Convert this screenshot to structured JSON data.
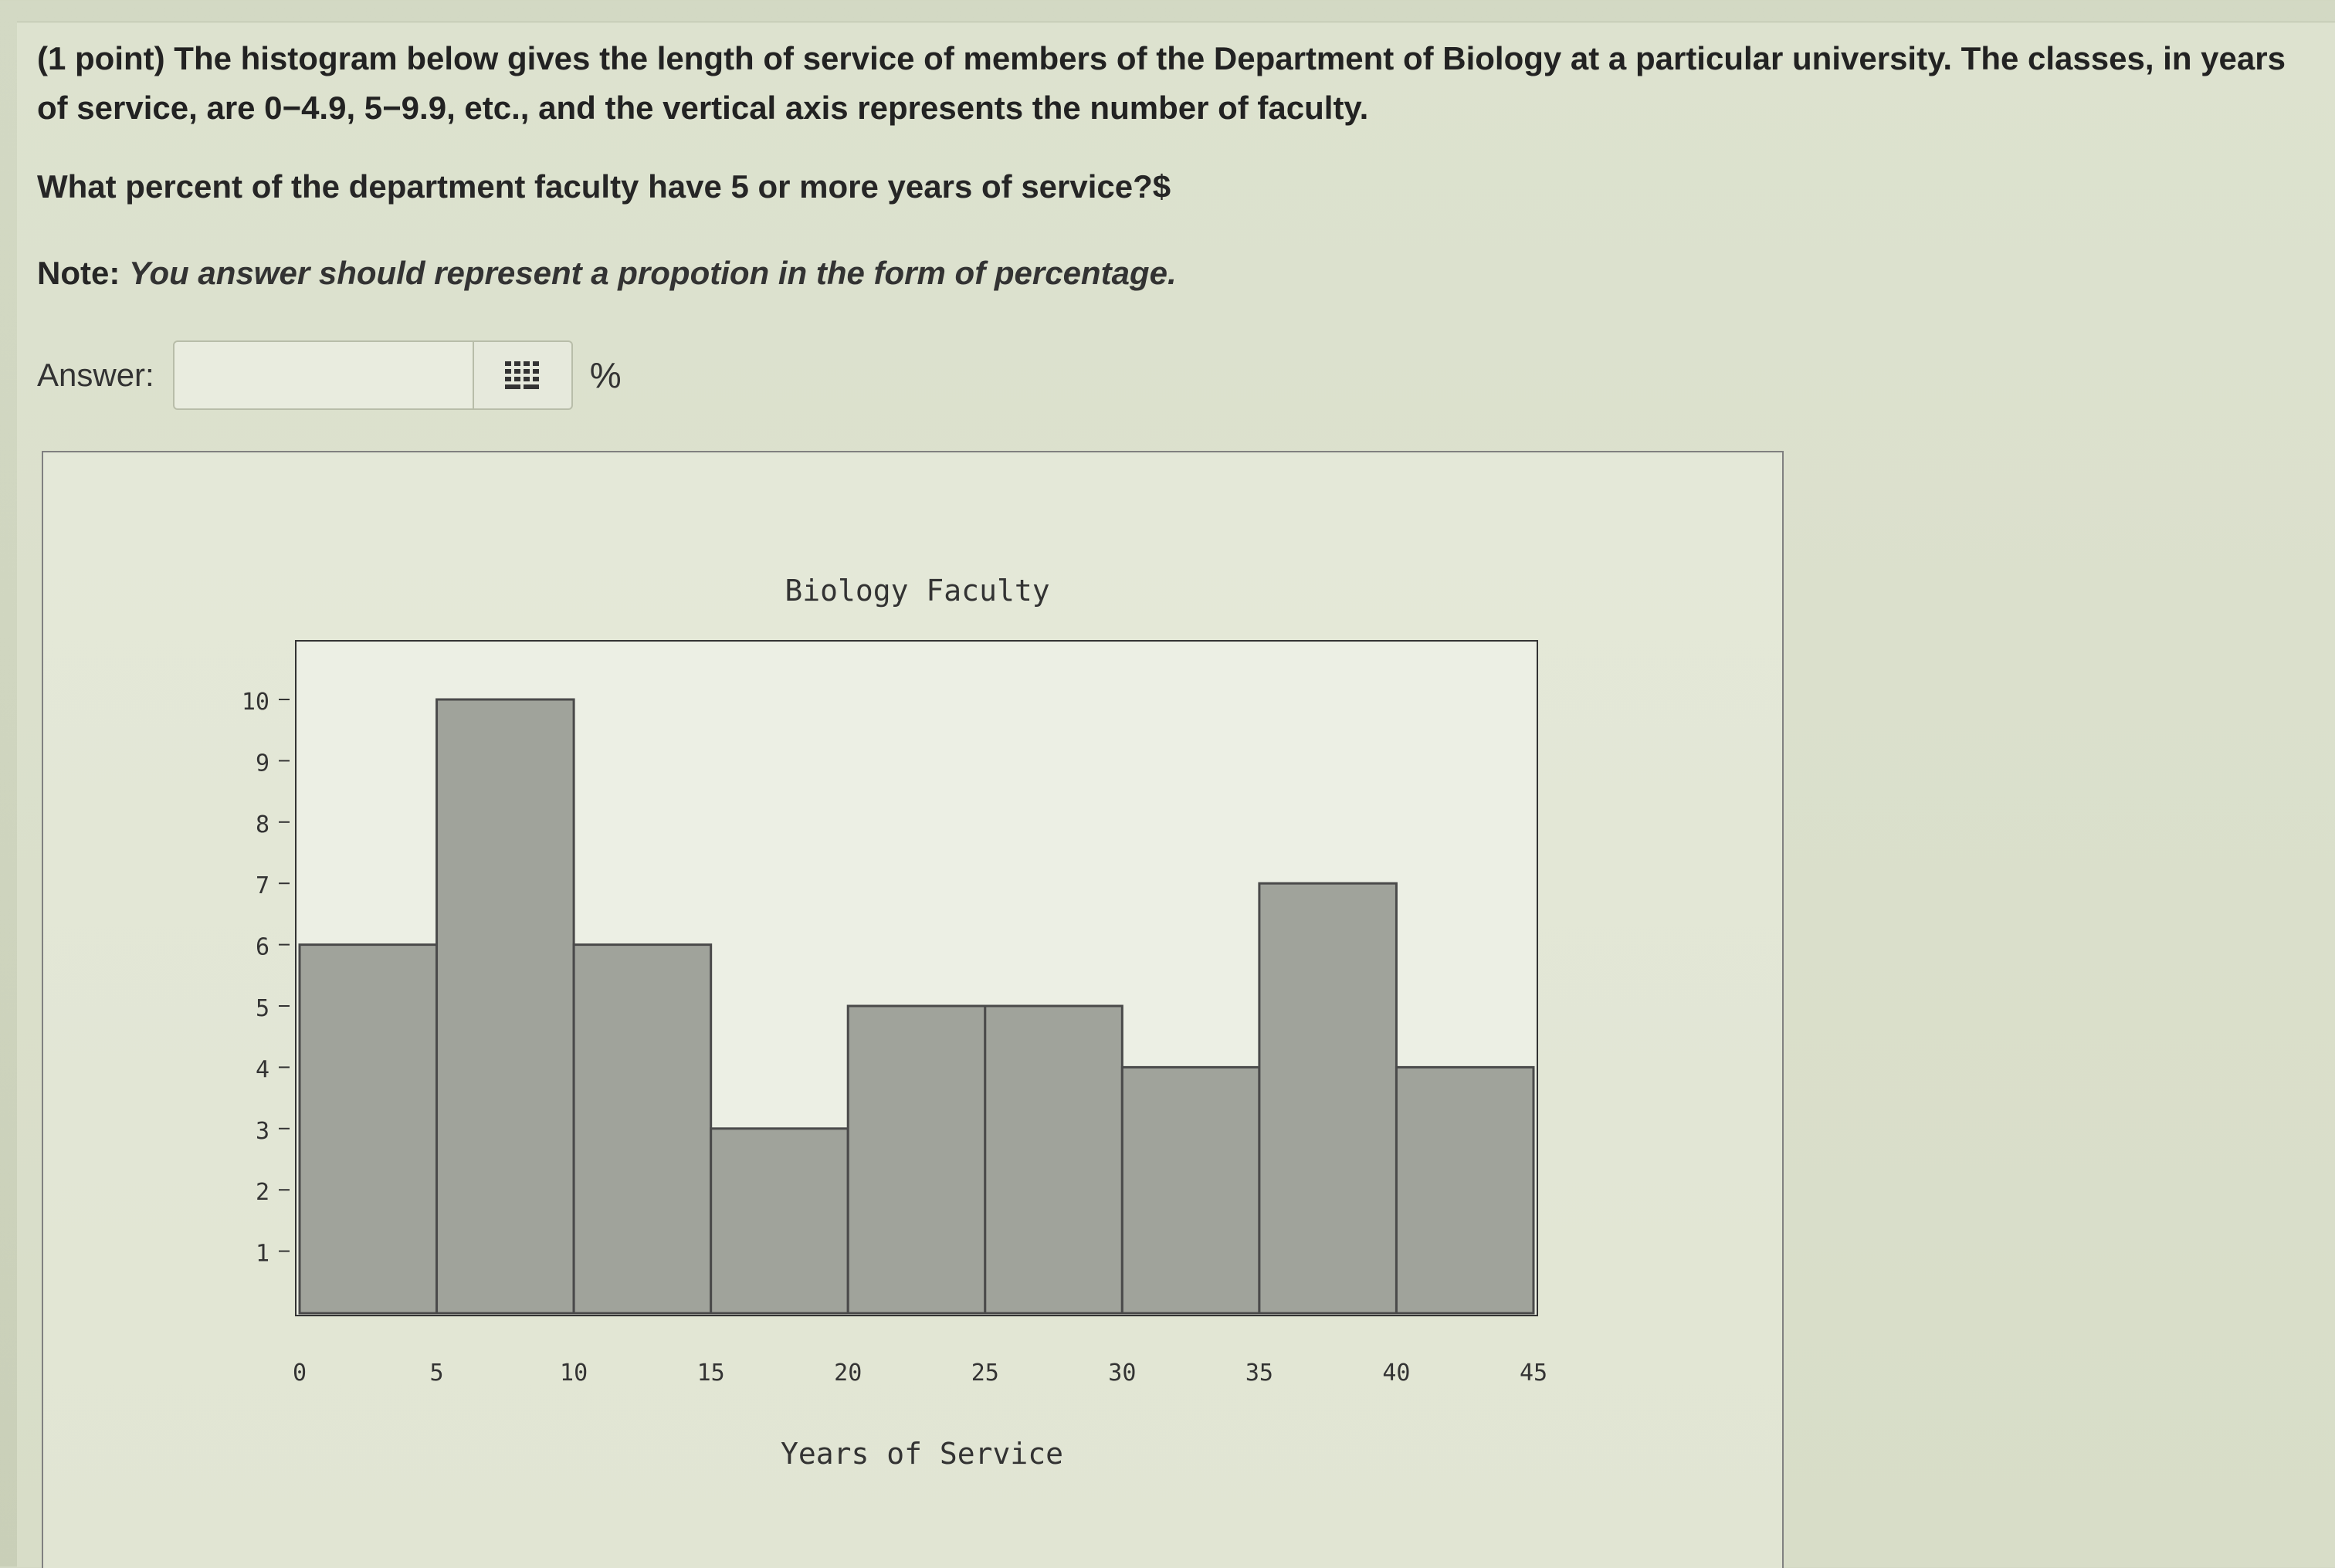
{
  "problem": {
    "text": "(1 point) The histogram below gives the length of service of members of the Department of Biology at a particular university. The classes, in years of service, are 0−4.9, 5−9.9, etc., and the vertical axis represents the number of faculty.",
    "question": "What percent of the department faculty have 5 or more years of service?$",
    "note_label": "Note:",
    "note_text": "You answer should represent a propotion in the form of percentage."
  },
  "answer": {
    "label": "Answer:",
    "value": "",
    "unit": "%"
  },
  "icons": {
    "equation_editor": "grid-keypad-icon"
  },
  "colors": {
    "bar_fill": "#a0a39b",
    "bar_stroke": "#4a4a4a",
    "plot_bg": "#ecefe4"
  },
  "chart_data": {
    "type": "bar",
    "title": "Biology Faculty",
    "xlabel": "Years of Service",
    "ylabel": "",
    "bins": [
      [
        0,
        5
      ],
      [
        5,
        10
      ],
      [
        10,
        15
      ],
      [
        15,
        20
      ],
      [
        20,
        25
      ],
      [
        25,
        30
      ],
      [
        30,
        35
      ],
      [
        35,
        40
      ],
      [
        40,
        45
      ]
    ],
    "values": [
      6,
      10,
      6,
      3,
      5,
      5,
      4,
      7,
      4
    ],
    "x_ticks": [
      "0",
      "5",
      "10",
      "15",
      "20",
      "25",
      "30",
      "35",
      "40",
      "45"
    ],
    "y_ticks": [
      "1",
      "2",
      "3",
      "4",
      "5",
      "6",
      "7",
      "8",
      "9",
      "10"
    ],
    "xlim": [
      0,
      45
    ],
    "ylim": [
      0,
      11
    ],
    "grid": false
  }
}
